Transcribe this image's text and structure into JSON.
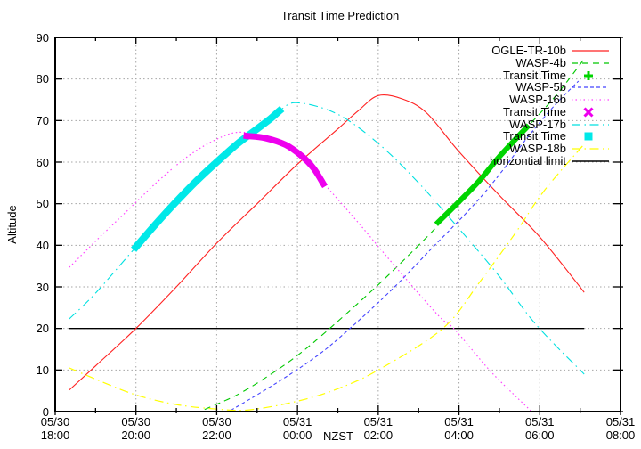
{
  "chart_data": {
    "type": "line",
    "title": "Transit Time Prediction",
    "xlabel": "NZST",
    "ylabel": "Altitude",
    "ylim": [
      0,
      90
    ],
    "x_range": [
      "05/30 18:00",
      "05/31 08:00"
    ],
    "x_unit": "hours after 05/30 18:00 NZST",
    "grid": "dotted",
    "grid_color": "#a6a6a6",
    "legend_position": "top-right",
    "x_ticks": [
      {
        "date": "05/30",
        "time": "18:00"
      },
      {
        "date": "05/30",
        "time": "20:00"
      },
      {
        "date": "05/30",
        "time": "22:00"
      },
      {
        "date": "05/31",
        "time": "00:00"
      },
      {
        "date": "05/31",
        "time": "02:00"
      },
      {
        "date": "05/31",
        "time": "04:00"
      },
      {
        "date": "05/31",
        "time": "06:00"
      },
      {
        "date": "05/31",
        "time": "08:00"
      }
    ],
    "y_ticks": [
      "0",
      "10",
      "20",
      "30",
      "40",
      "50",
      "60",
      "70",
      "80",
      "90"
    ],
    "series": [
      {
        "name": "horizontial limit",
        "color": "#000000",
        "line": "solid",
        "width": 1.3,
        "points": [
          [
            0.35,
            20
          ],
          [
            13.1,
            20
          ]
        ]
      },
      {
        "name": "OGLE-TR-10b",
        "color": "#ff2222",
        "line": "solid",
        "width": 1.1,
        "points": [
          [
            0.35,
            5.2
          ],
          [
            1,
            11
          ],
          [
            2,
            20
          ],
          [
            3,
            30
          ],
          [
            4,
            40.5
          ],
          [
            5,
            50
          ],
          [
            6,
            59.5
          ],
          [
            7,
            68
          ],
          [
            7.5,
            72.3
          ],
          [
            8,
            76
          ],
          [
            8.6,
            75.2
          ],
          [
            9.2,
            71.8
          ],
          [
            10,
            62.5
          ],
          [
            11,
            52
          ],
          [
            12,
            42
          ],
          [
            13.1,
            28.7
          ]
        ]
      },
      {
        "name": "WASP-4b",
        "color": "#00c800",
        "line": "dashed",
        "width": 1.1,
        "points": [
          [
            3.7,
            0.5
          ],
          [
            4.5,
            4
          ],
          [
            5.25,
            8.4
          ],
          [
            6,
            13.5
          ],
          [
            6.8,
            20
          ],
          [
            8,
            30.5
          ],
          [
            9,
            40
          ],
          [
            9.5,
            45
          ],
          [
            10.5,
            55.5
          ],
          [
            11.7,
            68.5
          ],
          [
            12.4,
            76
          ],
          [
            13.07,
            84.4
          ]
        ]
      },
      {
        "name": "WASP-5b",
        "color": "#4444ff",
        "line": "dashed-small",
        "width": 1.1,
        "points": [
          [
            4.35,
            0.3
          ],
          [
            5.5,
            7
          ],
          [
            6.5,
            13.5
          ],
          [
            7.3,
            20
          ],
          [
            8.3,
            29
          ],
          [
            9.3,
            39
          ],
          [
            10.3,
            49
          ],
          [
            11,
            57
          ],
          [
            11.7,
            66
          ],
          [
            12.4,
            74
          ],
          [
            12.96,
            79.5
          ]
        ]
      },
      {
        "name": "WASP-16b",
        "color": "#ff44ff",
        "line": "dotted",
        "width": 1.2,
        "points": [
          [
            0.35,
            34.7
          ],
          [
            1,
            41
          ],
          [
            1.7,
            47.5
          ],
          [
            2.5,
            55
          ],
          [
            3.3,
            61.5
          ],
          [
            4,
            65.5
          ],
          [
            4.55,
            67.2
          ],
          [
            5.2,
            66
          ],
          [
            6,
            62
          ],
          [
            6.64,
            55
          ],
          [
            7.5,
            45.5
          ],
          [
            8.5,
            34
          ],
          [
            9.5,
            23
          ],
          [
            9.9,
            19.7
          ],
          [
            10.8,
            9.5
          ],
          [
            11.8,
            0
          ]
        ]
      },
      {
        "name": "WASP-17b",
        "color": "#00e0e0",
        "line": "dashdot",
        "width": 1.1,
        "points": [
          [
            0.35,
            22.3
          ],
          [
            1,
            28.5
          ],
          [
            2,
            39.6
          ],
          [
            3,
            50.5
          ],
          [
            4,
            60
          ],
          [
            5,
            68
          ],
          [
            5.55,
            72.3
          ],
          [
            6,
            74.3
          ],
          [
            7,
            71.5
          ],
          [
            8,
            64.5
          ],
          [
            9,
            55
          ],
          [
            10,
            44
          ],
          [
            11,
            32.5
          ],
          [
            11.9,
            21
          ],
          [
            13.1,
            9
          ]
        ]
      },
      {
        "name": "WASP-18b",
        "color": "#ffff00",
        "line": "dashdot",
        "width": 1.2,
        "points": [
          [
            0.35,
            10.5
          ],
          [
            1,
            7.8
          ],
          [
            2,
            4
          ],
          [
            3,
            1.7
          ],
          [
            4,
            0.6
          ],
          [
            4.8,
            0.4
          ],
          [
            6,
            2.5
          ],
          [
            7,
            5.5
          ],
          [
            8,
            10
          ],
          [
            9.6,
            20
          ],
          [
            10.5,
            31
          ],
          [
            11.4,
            43
          ],
          [
            12.1,
            53
          ],
          [
            13.07,
            64
          ]
        ]
      }
    ],
    "transit_markers": [
      {
        "label": "Transit Time",
        "target": "WASP-17b",
        "color": "#00e8e8",
        "width": 8,
        "points": [
          [
            2.0,
            39.6
          ],
          [
            2.5,
            45.2
          ],
          [
            3,
            50.5
          ],
          [
            3.5,
            55.5
          ],
          [
            4,
            60
          ],
          [
            4.5,
            64.3
          ],
          [
            5,
            68
          ],
          [
            5.3,
            70.2
          ],
          [
            5.55,
            72.3
          ]
        ]
      },
      {
        "label": "Transit Time",
        "target": "WASP-16b",
        "color": "#ee00ee",
        "width": 7,
        "points": [
          [
            4.74,
            66.3
          ],
          [
            5.2,
            65.8
          ],
          [
            5.7,
            64.2
          ],
          [
            6.1,
            61.5
          ],
          [
            6.4,
            58.5
          ],
          [
            6.64,
            54.8
          ]
        ]
      },
      {
        "label": "Transit Time",
        "target": "WASP-4b",
        "color": "#00d400",
        "width": 6,
        "points": [
          [
            9.48,
            45.5
          ],
          [
            10,
            50.5
          ],
          [
            10.5,
            55.5
          ],
          [
            11,
            61.3
          ],
          [
            11.68,
            68.4
          ]
        ]
      }
    ],
    "legend": [
      {
        "label": "OGLE-TR-10b",
        "swatch": "line",
        "line": "solid",
        "color": "#ff2222"
      },
      {
        "label": "WASP-4b",
        "swatch": "line",
        "line": "dashed",
        "color": "#00c800"
      },
      {
        "label": "Transit Time",
        "swatch": "marker",
        "marker": "plus",
        "color": "#00d400"
      },
      {
        "label": "WASP-5b",
        "swatch": "line",
        "line": "dashed-small",
        "color": "#4444ff"
      },
      {
        "label": "WASP-16b",
        "swatch": "line",
        "line": "dotted",
        "color": "#ff44ff"
      },
      {
        "label": "Transit Time",
        "swatch": "marker",
        "marker": "cross",
        "color": "#ee00ee"
      },
      {
        "label": "WASP-17b",
        "swatch": "line",
        "line": "dashdot",
        "color": "#00e0e0"
      },
      {
        "label": "Transit Time",
        "swatch": "marker",
        "marker": "square",
        "color": "#00e8e8"
      },
      {
        "label": "WASP-18b",
        "swatch": "line",
        "line": "dashdot",
        "color": "#ffff00"
      },
      {
        "label": "horizontial limit",
        "swatch": "line",
        "line": "solid",
        "color": "#000000"
      }
    ]
  }
}
